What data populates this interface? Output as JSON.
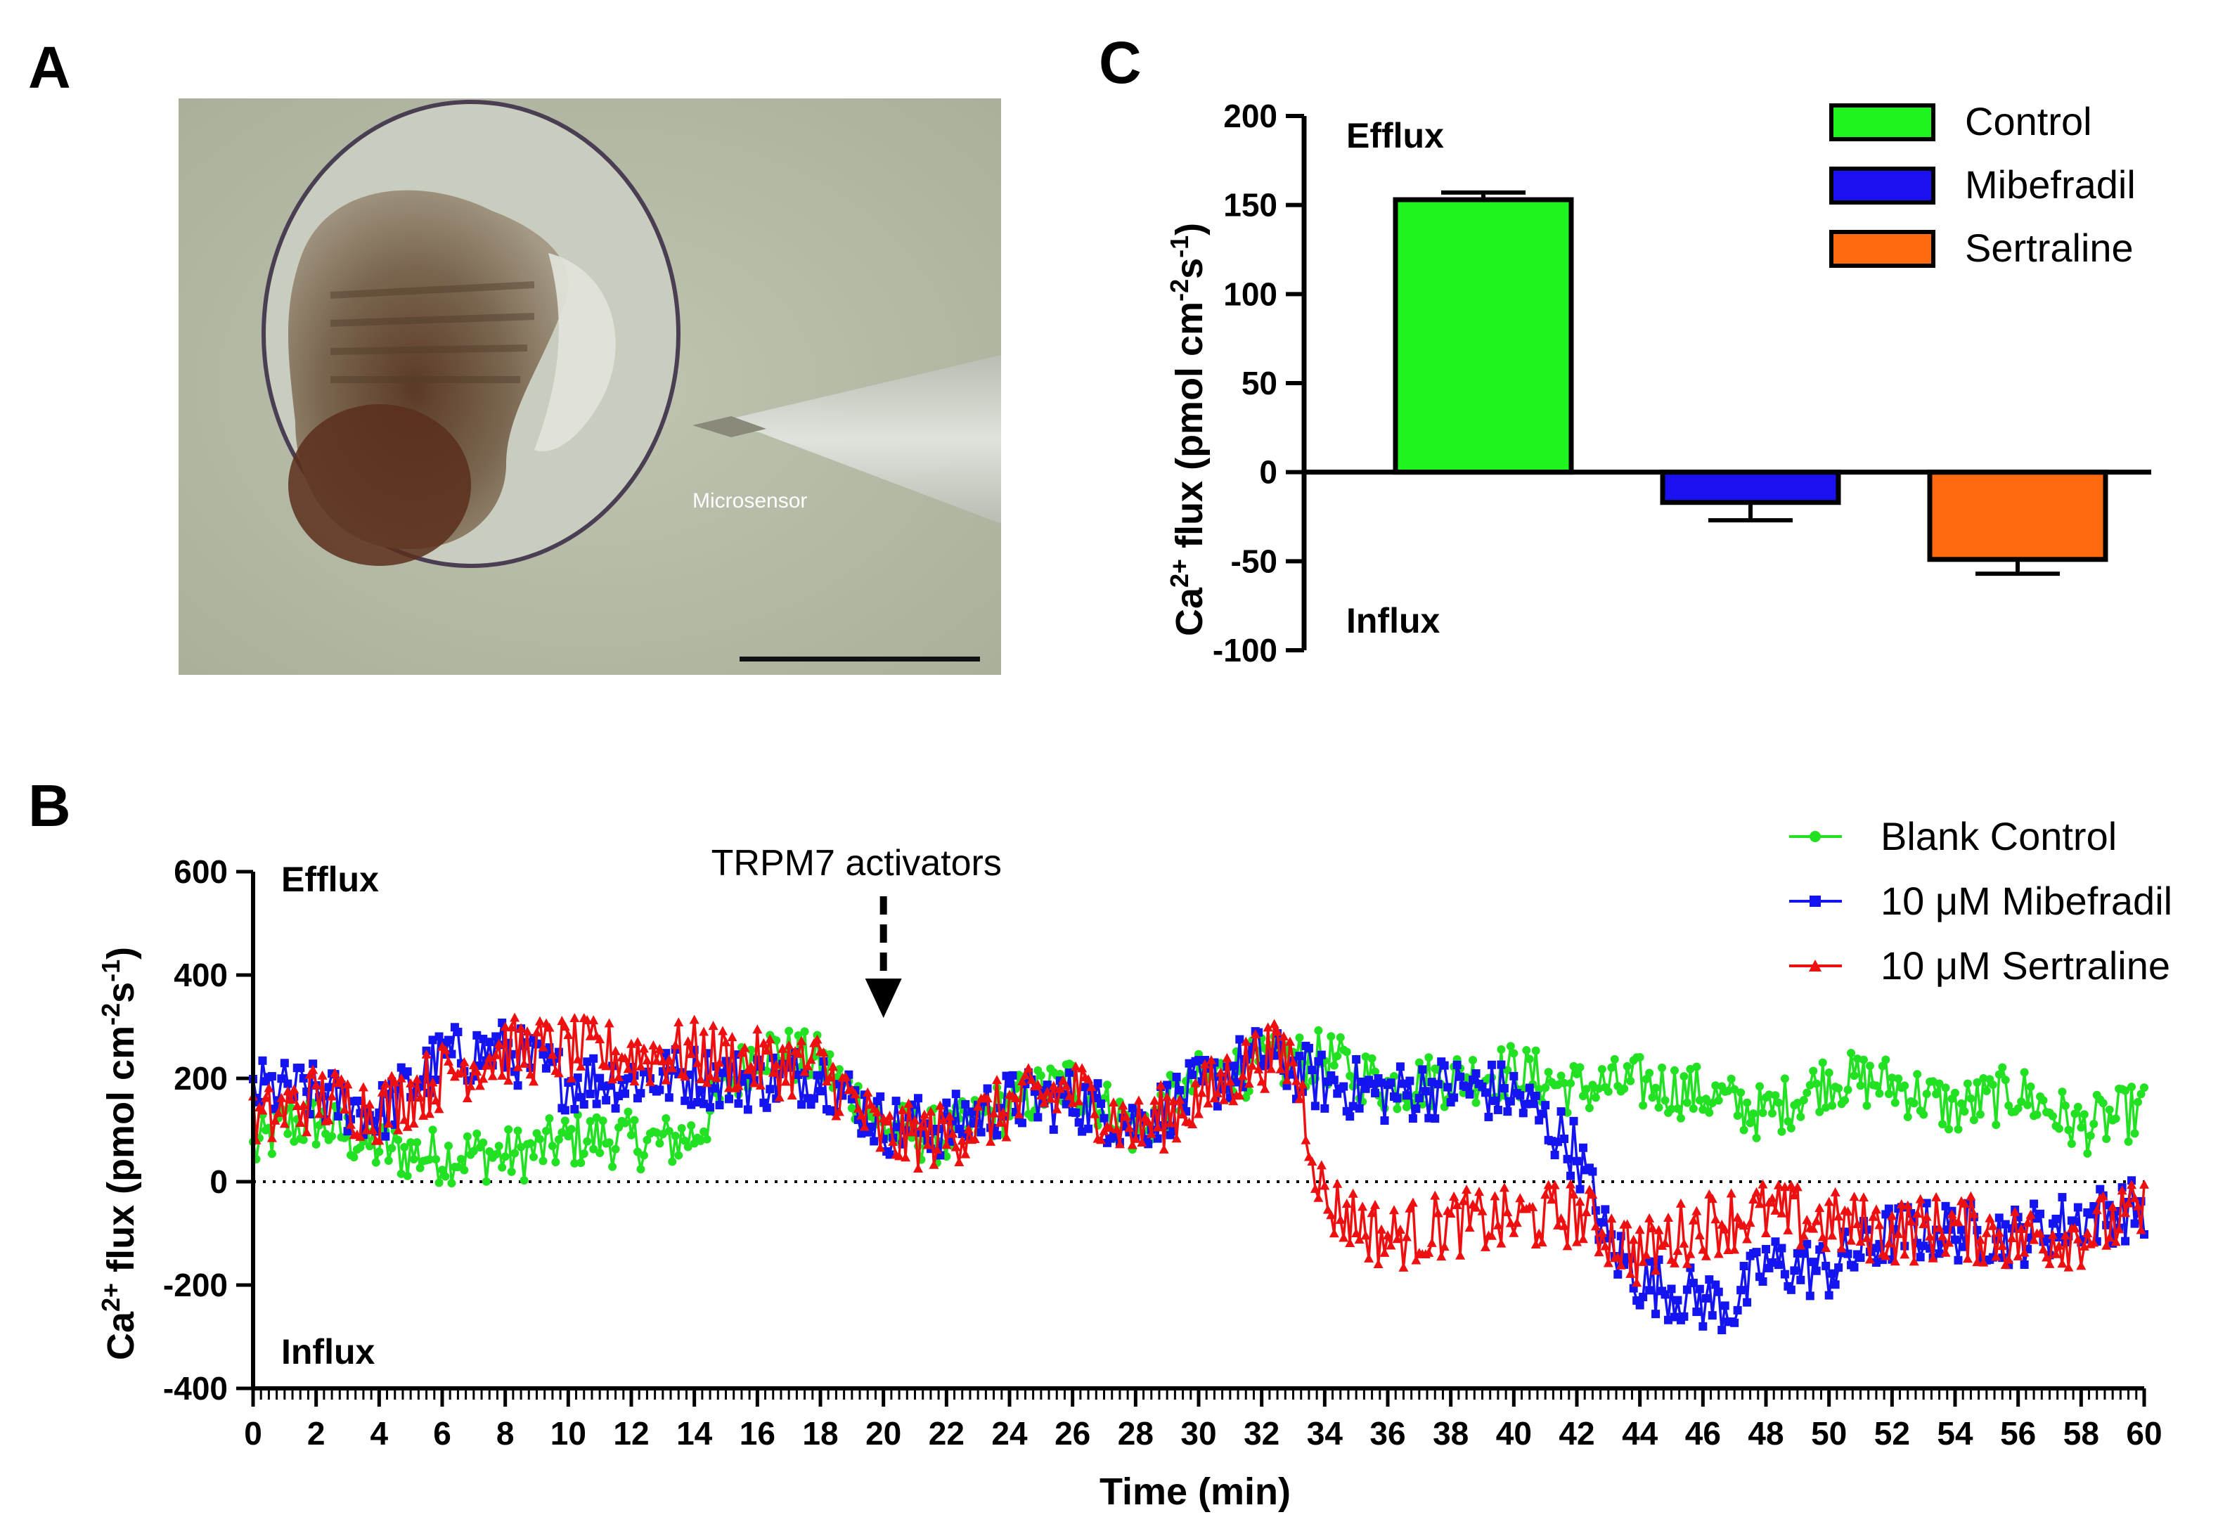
{
  "panels": {
    "a": "A",
    "b": "B",
    "c": "C"
  },
  "panel_a": {
    "microsensor_label": "Microsensor",
    "colors": {
      "background": "#b7bda8",
      "embryo": "#6e5a45",
      "yolk": "#5a3422",
      "shell": "#cfd2c8",
      "pipette": "#c8cccd"
    }
  },
  "chart_data": [
    {
      "id": "panel-c",
      "type": "bar",
      "title": "",
      "ylabel": "Ca2+ flux (pmol cm-2s-1)",
      "ylabel_parts": {
        "base1": "Ca",
        "sup1": "2+",
        "base2": " flux (pmol cm",
        "sup2": "-2",
        "base3": "s",
        "sup3": "-1",
        "base4": ")"
      },
      "ylim": [
        -100,
        200
      ],
      "yticks": [
        -100,
        -50,
        0,
        50,
        100,
        150,
        200
      ],
      "categories": [
        "Control",
        "Mibefradil",
        "Sertraline"
      ],
      "values": [
        153,
        -17,
        -49
      ],
      "errors": [
        4,
        10,
        8
      ],
      "colors": [
        "#1ef51e",
        "#1a10f0",
        "#ff6a10"
      ],
      "annotations": {
        "top": "Efflux",
        "bottom": "Influx"
      },
      "legend": {
        "position": "top-right",
        "entries": [
          "Control",
          "Mibefradil",
          "Sertraline"
        ]
      }
    },
    {
      "id": "panel-b",
      "type": "line",
      "xlabel": "Time (min)",
      "ylabel": "Ca2+ flux (pmol cm-2s-1)",
      "ylabel_parts": {
        "base1": "Ca",
        "sup1": "2+",
        "base2": " flux (pmol cm",
        "sup2": "-2",
        "base3": "s",
        "sup3": "-1",
        "base4": ")"
      },
      "xlim": [
        0,
        60
      ],
      "ylim": [
        -400,
        600
      ],
      "xticks": [
        0,
        2,
        4,
        6,
        8,
        10,
        12,
        14,
        16,
        18,
        20,
        22,
        24,
        26,
        28,
        30,
        32,
        34,
        36,
        38,
        40,
        42,
        44,
        46,
        48,
        50,
        52,
        54,
        56,
        58,
        60
      ],
      "yticks": [
        -400,
        -200,
        0,
        200,
        400,
        600
      ],
      "annotations": {
        "top": "Efflux",
        "bottom": "Influx",
        "arrow_label": "TRPM7 activators",
        "arrow_x": 20
      },
      "legend": {
        "position": "top-right"
      },
      "series": [
        {
          "name": "Blank Control",
          "color": "#22e022",
          "marker": "circle",
          "anchors": [
            [
              0,
              60
            ],
            [
              1,
              110
            ],
            [
              2,
              115
            ],
            [
              3,
              90
            ],
            [
              4,
              65
            ],
            [
              5,
              55
            ],
            [
              6,
              50
            ],
            [
              7,
              55
            ],
            [
              8,
              50
            ],
            [
              9,
              60
            ],
            [
              10,
              80
            ],
            [
              11,
              85
            ],
            [
              12,
              80
            ],
            [
              13,
              75
            ],
            [
              14,
              90
            ],
            [
              15,
              175
            ],
            [
              16,
              260
            ],
            [
              18,
              230
            ],
            [
              20,
              105
            ],
            [
              22,
              85
            ],
            [
              24,
              150
            ],
            [
              26,
              195
            ],
            [
              28,
              100
            ],
            [
              30,
              195
            ],
            [
              32,
              225
            ],
            [
              34,
              240
            ],
            [
              36,
              185
            ],
            [
              38,
              200
            ],
            [
              40,
              215
            ],
            [
              42,
              180
            ],
            [
              44,
              190
            ],
            [
              46,
              170
            ],
            [
              47,
              150
            ],
            [
              48,
              130
            ],
            [
              50,
              200
            ],
            [
              52,
              190
            ],
            [
              54,
              140
            ],
            [
              56,
              175
            ],
            [
              58,
              105
            ],
            [
              60,
              140
            ]
          ],
          "noise": 55,
          "step": 0.1
        },
        {
          "name": "10 μM Mibefradil",
          "color": "#1414f0",
          "marker": "square",
          "anchors": [
            [
              0,
              180
            ],
            [
              2,
              170
            ],
            [
              4,
              130
            ],
            [
              6,
              240
            ],
            [
              8,
              255
            ],
            [
              10,
              195
            ],
            [
              12,
              200
            ],
            [
              14,
              205
            ],
            [
              16,
              195
            ],
            [
              18,
              210
            ],
            [
              20,
              110
            ],
            [
              22,
              105
            ],
            [
              24,
              155
            ],
            [
              26,
              160
            ],
            [
              28,
              110
            ],
            [
              30,
              180
            ],
            [
              32,
              245
            ],
            [
              34,
              190
            ],
            [
              36,
              170
            ],
            [
              38,
              185
            ],
            [
              40,
              170
            ],
            [
              42,
              60
            ],
            [
              43,
              -120
            ],
            [
              44,
              -190
            ],
            [
              46,
              -230
            ],
            [
              47,
              -240
            ],
            [
              48,
              -160
            ],
            [
              50,
              -170
            ],
            [
              52,
              -100
            ],
            [
              54,
              -95
            ],
            [
              56,
              -105
            ],
            [
              58,
              -70
            ],
            [
              60,
              -50
            ]
          ],
          "noise": 60,
          "step": 0.1
        },
        {
          "name": "10 μM Sertraline",
          "color": "#ee1010",
          "marker": "triangle",
          "anchors": [
            [
              0,
              110
            ],
            [
              2,
              165
            ],
            [
              4,
              140
            ],
            [
              6,
              205
            ],
            [
              8,
              255
            ],
            [
              10,
              255
            ],
            [
              12,
              245
            ],
            [
              14,
              250
            ],
            [
              16,
              230
            ],
            [
              18,
              225
            ],
            [
              20,
              85
            ],
            [
              22,
              90
            ],
            [
              24,
              145
            ],
            [
              26,
              180
            ],
            [
              28,
              100
            ],
            [
              30,
              160
            ],
            [
              32,
              245
            ],
            [
              33,
              240
            ],
            [
              34,
              -40
            ],
            [
              36,
              -110
            ],
            [
              38,
              -80
            ],
            [
              40,
              -75
            ],
            [
              42,
              -60
            ],
            [
              44,
              -140
            ],
            [
              46,
              -80
            ],
            [
              48,
              -60
            ],
            [
              50,
              -80
            ],
            [
              52,
              -95
            ],
            [
              54,
              -85
            ],
            [
              56,
              -110
            ],
            [
              58,
              -100
            ],
            [
              60,
              -60
            ]
          ],
          "noise": 65,
          "step": 0.1
        }
      ]
    }
  ]
}
